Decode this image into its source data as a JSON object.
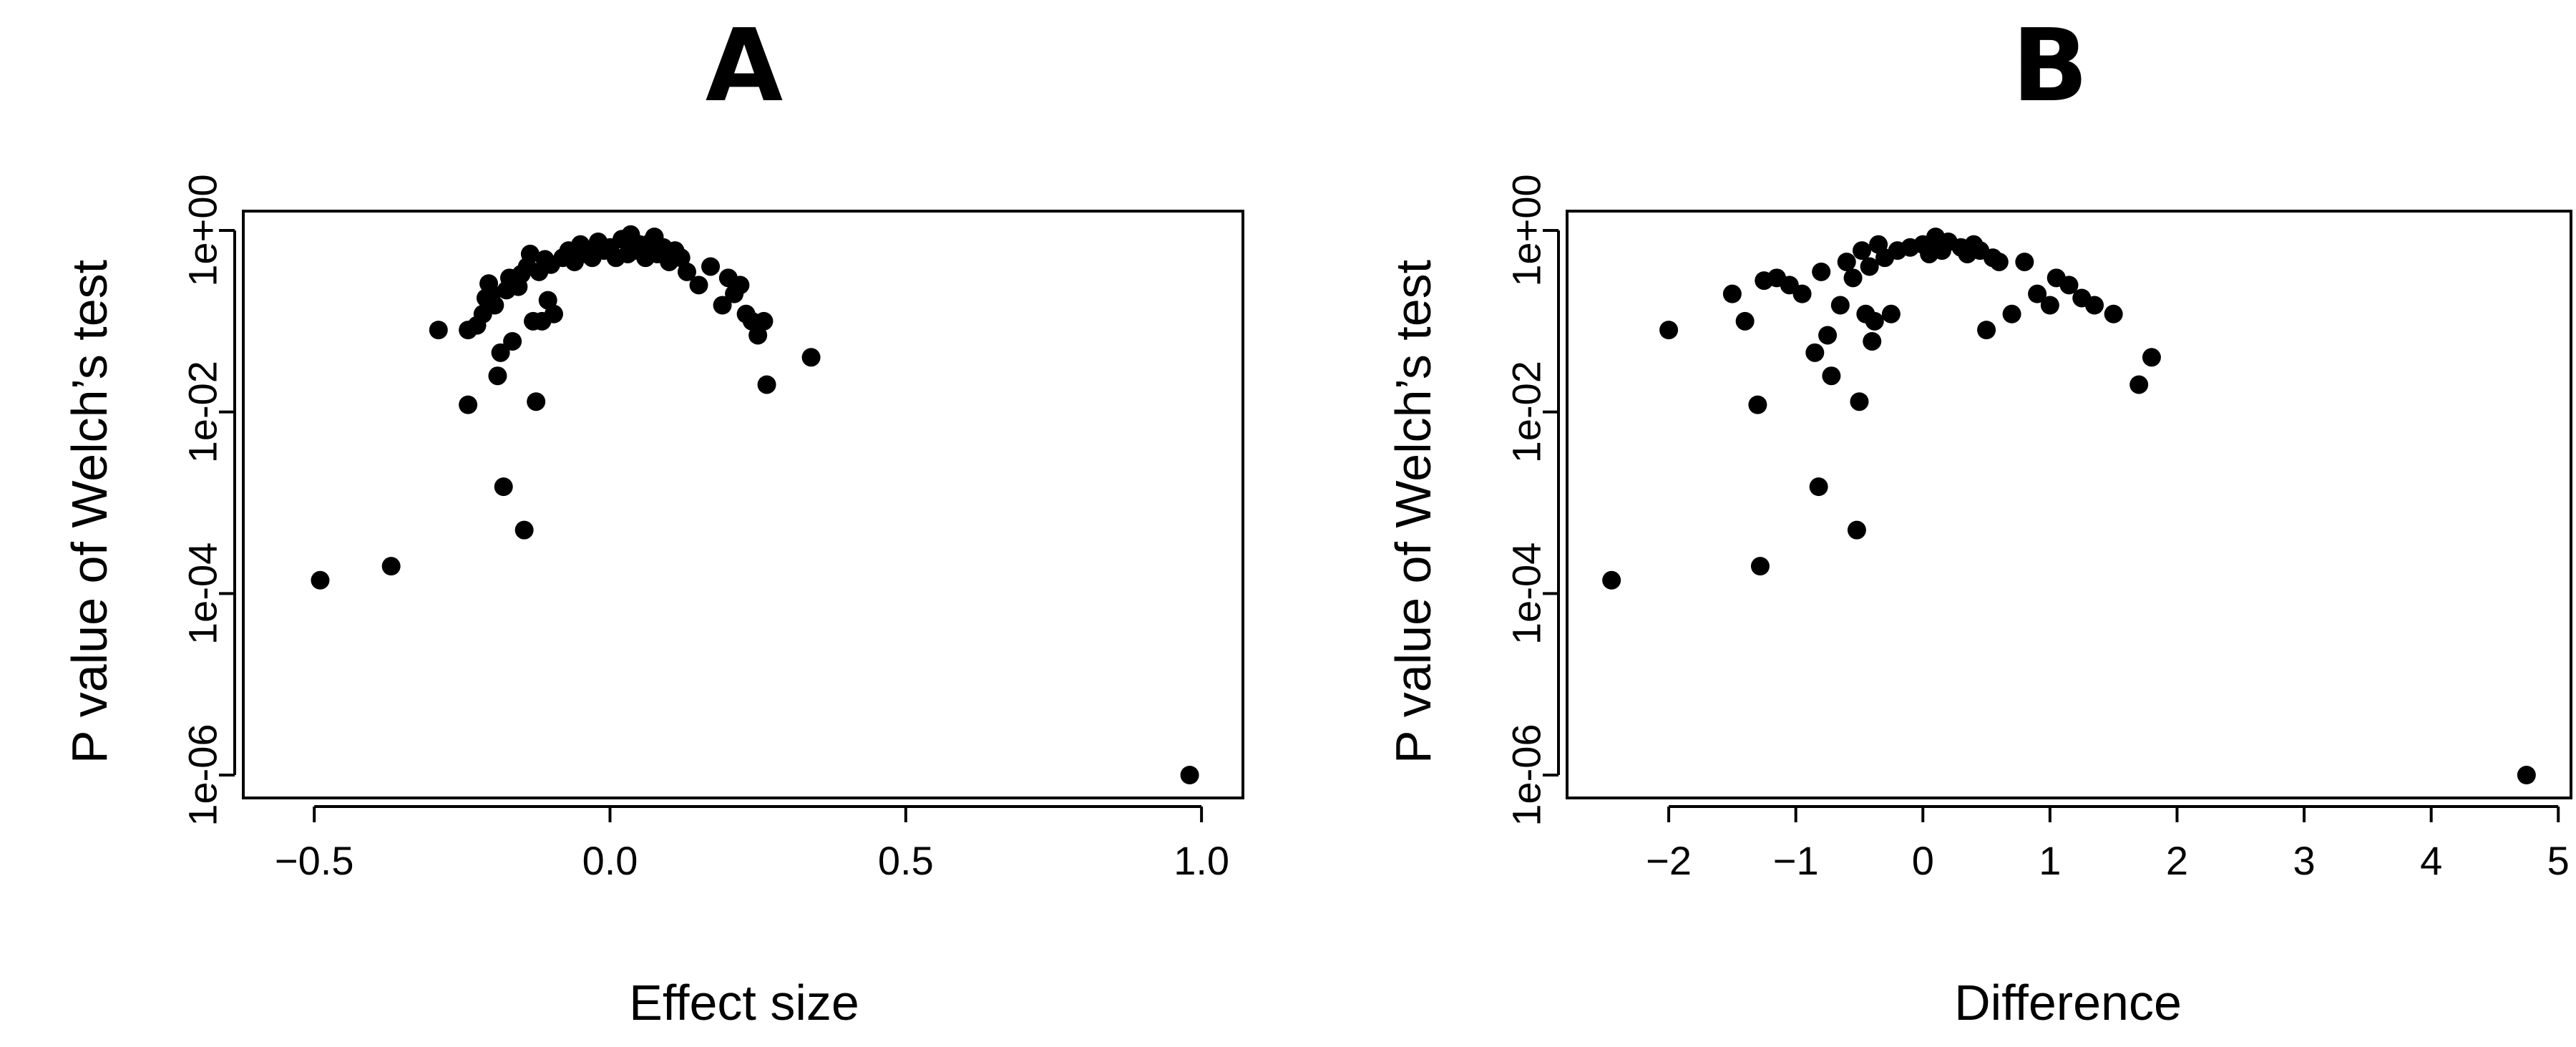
{
  "chart_data": [
    {
      "panel": "A",
      "type": "scatter",
      "title": "A",
      "xlabel": "Effect size",
      "ylabel": "P value of Welch’s test",
      "y_scale": "log10",
      "xlim": [
        -0.62,
        1.07
      ],
      "ylim": [
        1e-06,
        1
      ],
      "x_ticks": [
        -0.5,
        0.0,
        0.5,
        1.0
      ],
      "x_tick_labels": [
        "−0.5",
        "0.0",
        "0.5",
        "1.0"
      ],
      "y_ticks": [
        1,
        0.01,
        0.0001,
        1e-06
      ],
      "y_tick_labels": [
        "1e+00",
        "1e-02",
        "1e-04",
        "1e-06"
      ],
      "grid": false,
      "legend": "none",
      "points": [
        [
          -0.49,
          0.00014
        ],
        [
          -0.37,
          0.0002
        ],
        [
          -0.29,
          0.08
        ],
        [
          -0.24,
          0.08
        ],
        [
          -0.24,
          0.012
        ],
        [
          -0.225,
          0.09
        ],
        [
          -0.215,
          0.12
        ],
        [
          -0.21,
          0.18
        ],
        [
          -0.205,
          0.26
        ],
        [
          -0.2,
          0.2
        ],
        [
          -0.195,
          0.15
        ],
        [
          -0.19,
          0.025
        ],
        [
          -0.185,
          0.045
        ],
        [
          -0.18,
          0.0015
        ],
        [
          -0.175,
          0.22
        ],
        [
          -0.17,
          0.3
        ],
        [
          -0.165,
          0.06
        ],
        [
          -0.16,
          0.27
        ],
        [
          -0.155,
          0.24
        ],
        [
          -0.15,
          0.33
        ],
        [
          -0.145,
          0.0005
        ],
        [
          -0.14,
          0.4
        ],
        [
          -0.135,
          0.55
        ],
        [
          -0.13,
          0.1
        ],
        [
          -0.125,
          0.013
        ],
        [
          -0.12,
          0.35
        ],
        [
          -0.115,
          0.1
        ],
        [
          -0.11,
          0.48
        ],
        [
          -0.105,
          0.17
        ],
        [
          -0.1,
          0.42
        ],
        [
          -0.095,
          0.12
        ],
        [
          -0.08,
          0.5
        ],
        [
          -0.07,
          0.6
        ],
        [
          -0.06,
          0.45
        ],
        [
          -0.05,
          0.7
        ],
        [
          -0.04,
          0.55
        ],
        [
          -0.03,
          0.5
        ],
        [
          -0.02,
          0.75
        ],
        [
          -0.01,
          0.6
        ],
        [
          0.0,
          0.65
        ],
        [
          0.01,
          0.5
        ],
        [
          0.02,
          0.8
        ],
        [
          0.03,
          0.55
        ],
        [
          0.035,
          0.9
        ],
        [
          0.04,
          0.6
        ],
        [
          0.05,
          0.7
        ],
        [
          0.06,
          0.5
        ],
        [
          0.07,
          0.75
        ],
        [
          0.075,
          0.85
        ],
        [
          0.08,
          0.55
        ],
        [
          0.09,
          0.65
        ],
        [
          0.1,
          0.45
        ],
        [
          0.11,
          0.6
        ],
        [
          0.12,
          0.5
        ],
        [
          0.13,
          0.35
        ],
        [
          0.15,
          0.25
        ],
        [
          0.17,
          0.4
        ],
        [
          0.19,
          0.15
        ],
        [
          0.2,
          0.3
        ],
        [
          0.21,
          0.2
        ],
        [
          0.22,
          0.25
        ],
        [
          0.23,
          0.12
        ],
        [
          0.24,
          0.1
        ],
        [
          0.25,
          0.07
        ],
        [
          0.26,
          0.1
        ],
        [
          0.265,
          0.02
        ],
        [
          0.34,
          0.04
        ],
        [
          0.98,
          1e-06
        ]
      ]
    },
    {
      "panel": "B",
      "type": "scatter",
      "title": "B",
      "xlabel": "Difference",
      "ylabel": "P value of Welch’s test",
      "y_scale": "log10",
      "xlim": [
        -2.8,
        5.1
      ],
      "ylim": [
        1e-06,
        1
      ],
      "x_ticks": [
        -2,
        -1,
        0,
        1,
        2,
        3,
        4,
        5
      ],
      "x_tick_labels": [
        "−2",
        "−1",
        "0",
        "1",
        "2",
        "3",
        "4",
        "5"
      ],
      "y_ticks": [
        1,
        0.01,
        0.0001,
        1e-06
      ],
      "y_tick_labels": [
        "1e+00",
        "1e-02",
        "1e-04",
        "1e-06"
      ],
      "grid": false,
      "legend": "none",
      "points": [
        [
          -2.45,
          0.00014
        ],
        [
          -2.0,
          0.08
        ],
        [
          -1.5,
          0.2
        ],
        [
          -1.4,
          0.1
        ],
        [
          -1.3,
          0.012
        ],
        [
          -1.28,
          0.0002
        ],
        [
          -1.25,
          0.28
        ],
        [
          -1.15,
          0.3
        ],
        [
          -1.05,
          0.25
        ],
        [
          -0.95,
          0.2
        ],
        [
          -0.85,
          0.045
        ],
        [
          -0.82,
          0.0015
        ],
        [
          -0.8,
          0.35
        ],
        [
          -0.75,
          0.07
        ],
        [
          -0.72,
          0.025
        ],
        [
          -0.65,
          0.15
        ],
        [
          -0.6,
          0.45
        ],
        [
          -0.55,
          0.3
        ],
        [
          -0.52,
          0.0005
        ],
        [
          -0.5,
          0.013
        ],
        [
          -0.48,
          0.6
        ],
        [
          -0.45,
          0.12
        ],
        [
          -0.42,
          0.4
        ],
        [
          -0.4,
          0.06
        ],
        [
          -0.38,
          0.1
        ],
        [
          -0.35,
          0.7
        ],
        [
          -0.3,
          0.5
        ],
        [
          -0.25,
          0.12
        ],
        [
          -0.2,
          0.6
        ],
        [
          -0.1,
          0.65
        ],
        [
          0.0,
          0.7
        ],
        [
          0.05,
          0.55
        ],
        [
          0.1,
          0.85
        ],
        [
          0.15,
          0.6
        ],
        [
          0.2,
          0.75
        ],
        [
          0.3,
          0.65
        ],
        [
          0.35,
          0.55
        ],
        [
          0.4,
          0.7
        ],
        [
          0.45,
          0.6
        ],
        [
          0.55,
          0.5
        ],
        [
          0.6,
          0.45
        ],
        [
          0.5,
          0.08
        ],
        [
          0.7,
          0.12
        ],
        [
          0.8,
          0.45
        ],
        [
          0.9,
          0.2
        ],
        [
          1.0,
          0.15
        ],
        [
          1.05,
          0.3
        ],
        [
          1.15,
          0.25
        ],
        [
          1.25,
          0.18
        ],
        [
          1.35,
          0.15
        ],
        [
          1.5,
          0.12
        ],
        [
          1.7,
          0.02
        ],
        [
          1.8,
          0.04
        ],
        [
          4.75,
          1e-06
        ]
      ]
    }
  ]
}
